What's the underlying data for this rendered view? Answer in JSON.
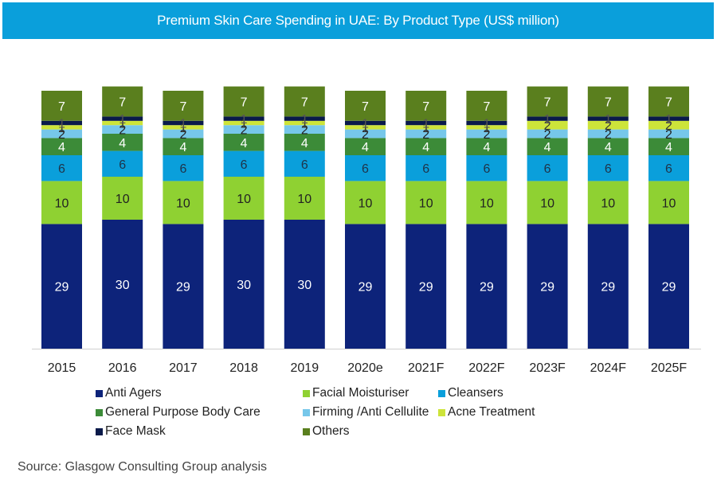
{
  "header": {
    "title": "Premium Skin Care Spending in UAE: By Product Type (US$ million)"
  },
  "source": "Source: Glasgow Consulting Group analysis",
  "chart_data": {
    "type": "bar",
    "stacked": true,
    "title": "Premium Skin Care Spending in UAE: By Product Type (US$ million)",
    "xlabel": "",
    "ylabel": "",
    "grid": false,
    "legend_position": "bottom",
    "categories": [
      "2015",
      "2016",
      "2017",
      "2018",
      "2019",
      "2020e",
      "2021F",
      "2022F",
      "2023F",
      "2024F",
      "2025F"
    ],
    "series": [
      {
        "name": "Anti Agers",
        "color": "#0d237a",
        "label_color": "#ffffff",
        "values": [
          29,
          30,
          29,
          30,
          30,
          29,
          29,
          29,
          29,
          29,
          29
        ]
      },
      {
        "name": "Facial Moisturiser",
        "color": "#8fd132",
        "label_color": "#222222",
        "values": [
          10,
          10,
          10,
          10,
          10,
          10,
          10,
          10,
          10,
          10,
          10
        ]
      },
      {
        "name": "Cleansers",
        "color": "#0a9fdb",
        "label_color": "#1f3349",
        "values": [
          6,
          6,
          6,
          6,
          6,
          6,
          6,
          6,
          6,
          6,
          6
        ]
      },
      {
        "name": "General Purpose Body Care",
        "color": "#3c8b38",
        "label_color": "#ffffff",
        "values": [
          4,
          4,
          4,
          4,
          4,
          4,
          4,
          4,
          4,
          4,
          4
        ]
      },
      {
        "name": "Firming /Anti Cellulite",
        "color": "#76c7ea",
        "label_color": "#222222",
        "values": [
          2,
          2,
          2,
          2,
          2,
          2,
          2,
          2,
          2,
          2,
          2
        ]
      },
      {
        "name": "Acne Treatment",
        "color": "#cde43a",
        "label_color": "#333333",
        "values": [
          1,
          1,
          1,
          1,
          1,
          1,
          1,
          1,
          2,
          2,
          2
        ]
      },
      {
        "name": "Face Mask",
        "color": "#0a1a4a",
        "label_color": "#555555",
        "values": [
          1,
          1,
          1,
          1,
          1,
          1,
          1,
          1,
          1,
          1,
          1
        ]
      },
      {
        "name": "Others",
        "color": "#5a7f1e",
        "label_color": "#ffffff",
        "values": [
          7,
          7,
          7,
          7,
          7,
          7,
          7,
          7,
          7,
          7,
          7
        ]
      }
    ]
  },
  "legend": {
    "items": [
      {
        "name": "Anti Agers",
        "color": "#0d237a"
      },
      {
        "name": "Facial Moisturiser",
        "color": "#8fd132"
      },
      {
        "name": "Cleansers",
        "color": "#0a9fdb"
      },
      {
        "name": "General Purpose Body Care",
        "color": "#3c8b38"
      },
      {
        "name": "Firming /Anti Cellulite",
        "color": "#76c7ea"
      },
      {
        "name": "Acne Treatment",
        "color": "#cde43a"
      },
      {
        "name": "Face Mask",
        "color": "#0a1a4a"
      },
      {
        "name": "Others",
        "color": "#5a7f1e"
      }
    ]
  }
}
